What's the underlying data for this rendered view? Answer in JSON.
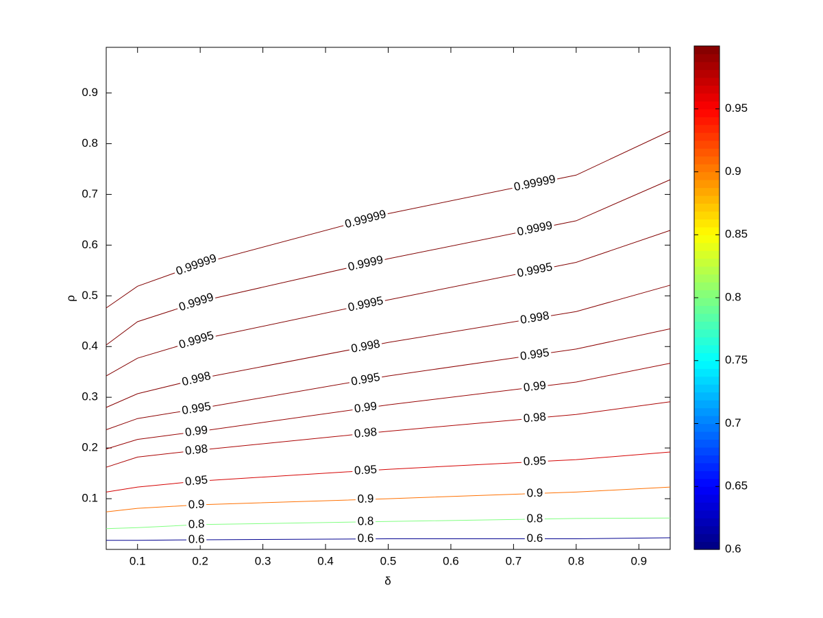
{
  "chart_data": {
    "type": "contour",
    "xlabel": "δ",
    "ylabel": "ρ",
    "x": [
      0.05,
      0.1,
      0.2,
      0.5,
      0.8,
      0.95
    ],
    "series": [
      {
        "name": "0.99999",
        "color": "#800000",
        "values": [
          0.476,
          0.519,
          0.563,
          0.662,
          0.738,
          0.825
        ]
      },
      {
        "name": "0.9999",
        "color": "#800000",
        "values": [
          0.403,
          0.449,
          0.489,
          0.573,
          0.648,
          0.729
        ]
      },
      {
        "name": "0.9995",
        "color": "#820000",
        "values": [
          0.342,
          0.377,
          0.414,
          0.492,
          0.566,
          0.629
        ]
      },
      {
        "name": "0.998",
        "color": "#860000",
        "values": [
          0.28,
          0.307,
          0.337,
          0.408,
          0.469,
          0.521
        ]
      },
      {
        "name": "0.995",
        "color": "#8c0000",
        "values": [
          0.236,
          0.258,
          0.278,
          0.342,
          0.395,
          0.435
        ]
      },
      {
        "name": "0.99",
        "color": "#960000",
        "values": [
          0.198,
          0.217,
          0.233,
          0.285,
          0.33,
          0.367
        ]
      },
      {
        "name": "0.98",
        "color": "#aa0000",
        "values": [
          0.162,
          0.182,
          0.196,
          0.233,
          0.266,
          0.291
        ]
      },
      {
        "name": "0.95",
        "color": "#d40000",
        "values": [
          0.113,
          0.123,
          0.135,
          0.158,
          0.177,
          0.192
        ]
      },
      {
        "name": "0.9",
        "color": "#ff7000",
        "values": [
          0.074,
          0.081,
          0.088,
          0.1,
          0.113,
          0.123
        ]
      },
      {
        "name": "0.8",
        "color": "#80ff80",
        "values": [
          0.041,
          0.043,
          0.049,
          0.055,
          0.061,
          0.062
        ]
      },
      {
        "name": "0.6",
        "color": "#00008f",
        "values": [
          0.018,
          0.018,
          0.019,
          0.021,
          0.021,
          0.023
        ]
      }
    ],
    "xlim": [
      0.05,
      0.95
    ],
    "ylim": [
      0,
      0.99
    ],
    "xticks": [
      0.1,
      0.2,
      0.3,
      0.4,
      0.5,
      0.6,
      0.7,
      0.8,
      0.9
    ],
    "yticks": [
      0.1,
      0.2,
      0.3,
      0.4,
      0.5,
      0.6,
      0.7,
      0.8,
      0.9
    ],
    "colormap": "jet",
    "clim": [
      0.6,
      1.0
    ],
    "colorbar_ticks": [
      0.6,
      0.65,
      0.7,
      0.75,
      0.8,
      0.85,
      0.9,
      0.95
    ]
  }
}
